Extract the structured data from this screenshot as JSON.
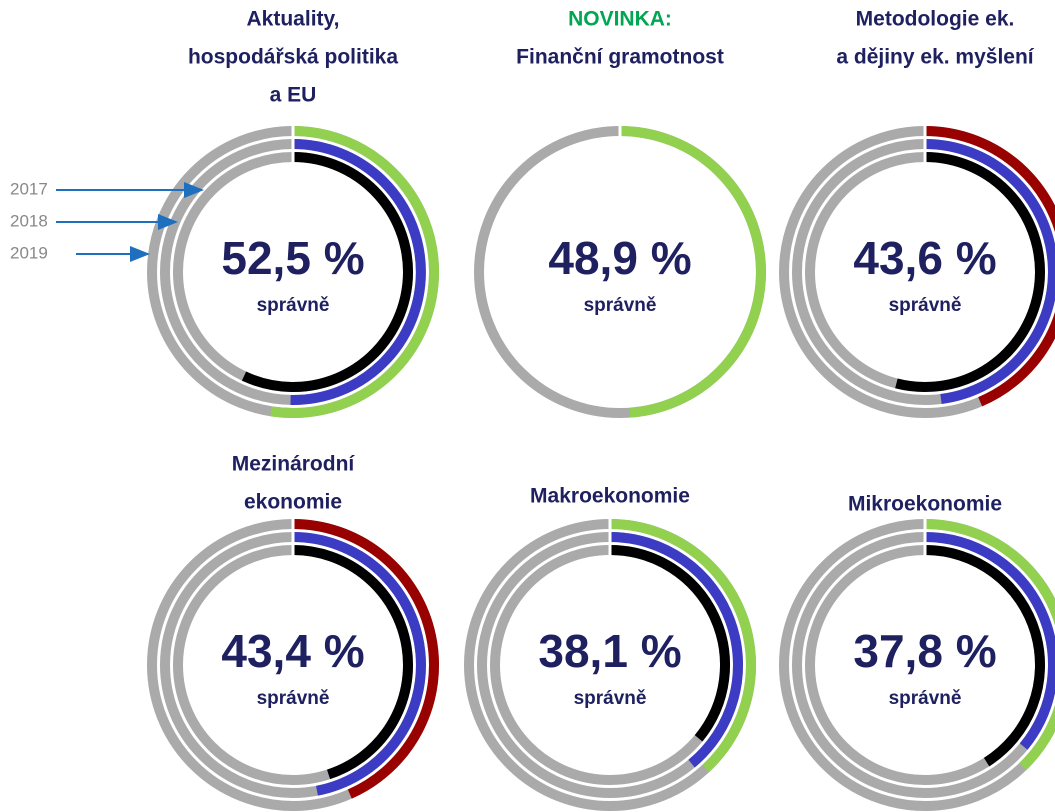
{
  "legend": [
    "2017",
    "2018",
    "2019"
  ],
  "chart_data": [
    {
      "type": "rings",
      "title": [
        "Aktuality,",
        "hospodářská politika",
        "a EU"
      ],
      "subtitle": "správně",
      "series": [
        {
          "color": "#92d050",
          "value": 52.5,
          "value_label": "52,5 %"
        },
        {
          "color": "#3b3bc4",
          "value": 50.3
        },
        {
          "color": "#000000",
          "value": 57
        }
      ]
    },
    {
      "type": "rings",
      "title": [
        "NOVINKA:",
        "Finanční gramotnost"
      ],
      "highlight_line": 0,
      "highlight_color": "#00a651",
      "subtitle": "správně",
      "series": [
        {
          "color": "#92d050",
          "value": 48.9,
          "value_label": "48,9 %"
        }
      ]
    },
    {
      "type": "rings",
      "title": [
        "Metodologie ek.",
        "a dějiny ek. myšlení"
      ],
      "subtitle": "správně",
      "series": [
        {
          "color": "#990000",
          "value": 43.6,
          "value_label": "43,6 %"
        },
        {
          "color": "#3b3bc4",
          "value": 48
        },
        {
          "color": "#000000",
          "value": 54
        }
      ]
    },
    {
      "type": "rings",
      "title": [
        "Mezinárodní",
        "ekonomie"
      ],
      "subtitle": "správně",
      "series": [
        {
          "color": "#990000",
          "value": 43.4,
          "value_label": "43,4 %"
        },
        {
          "color": "#3b3bc4",
          "value": 47
        },
        {
          "color": "#000000",
          "value": 45
        }
      ]
    },
    {
      "type": "rings",
      "title": [
        "Makroekonomie"
      ],
      "subtitle": "správně",
      "series": [
        {
          "color": "#92d050",
          "value": 38.1,
          "value_label": "38,1 %"
        },
        {
          "color": "#3b3bc4",
          "value": 39
        },
        {
          "color": "#000000",
          "value": 36
        }
      ]
    },
    {
      "type": "rings",
      "title": [
        "Mikroekonomie"
      ],
      "subtitle": "správně",
      "series": [
        {
          "color": "#92d050",
          "value": 37.8,
          "value_label": "37,8 %"
        },
        {
          "color": "#3b3bc4",
          "value": 36
        },
        {
          "color": "#000000",
          "value": 41
        }
      ]
    }
  ]
}
